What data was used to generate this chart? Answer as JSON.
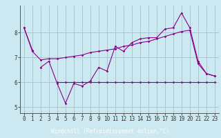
{
  "title": "",
  "xlabel": "Windchill (Refroidissement éolien,°C)",
  "bg_color": "#cce8f0",
  "line_color": "#880088",
  "grid_color": "#99ccbb",
  "xlabel_bg": "#660066",
  "xlabel_fg": "#ffffff",
  "x_values": [
    0,
    1,
    2,
    3,
    4,
    5,
    6,
    7,
    8,
    9,
    10,
    11,
    12,
    13,
    14,
    15,
    16,
    17,
    18,
    19,
    20,
    21,
    22,
    23
  ],
  "line1_x": [
    0,
    1
  ],
  "line1_y": [
    8.2,
    7.3
  ],
  "line2_x": [
    2,
    3,
    4,
    5,
    6,
    7,
    8,
    9,
    10,
    11,
    12,
    13,
    14,
    15,
    16,
    17,
    18,
    19,
    20,
    21,
    22,
    23
  ],
  "line2_y": [
    6.6,
    6.85,
    5.95,
    5.15,
    5.95,
    5.85,
    6.05,
    6.6,
    6.45,
    7.45,
    7.25,
    7.6,
    7.75,
    7.8,
    7.8,
    8.15,
    8.2,
    8.8,
    8.2,
    6.85,
    6.35,
    6.25
  ],
  "line3_x": [
    4,
    5,
    6,
    7,
    8,
    9,
    10,
    11,
    12,
    13,
    14,
    15,
    16,
    17,
    18,
    19,
    20,
    21,
    22,
    23
  ],
  "line3_y": [
    6.0,
    6.0,
    6.0,
    6.0,
    6.0,
    6.0,
    6.0,
    6.0,
    6.0,
    6.0,
    6.0,
    6.0,
    6.0,
    6.0,
    6.0,
    6.0,
    6.0,
    6.0,
    6.0,
    6.0
  ],
  "line4_x": [
    0,
    1,
    2,
    3,
    4,
    5,
    6,
    7,
    8,
    9,
    10,
    11,
    12,
    13,
    14,
    15,
    16,
    17,
    18,
    19,
    20,
    21,
    22,
    23
  ],
  "line4_y": [
    8.2,
    7.25,
    6.9,
    6.95,
    6.95,
    7.0,
    7.05,
    7.1,
    7.2,
    7.25,
    7.3,
    7.35,
    7.45,
    7.5,
    7.6,
    7.65,
    7.75,
    7.85,
    7.95,
    8.05,
    8.1,
    6.75,
    6.35,
    6.25
  ],
  "ylim": [
    4.75,
    9.1
  ],
  "yticks": [
    5,
    6,
    7,
    8
  ],
  "xticks": [
    0,
    1,
    2,
    3,
    4,
    5,
    6,
    7,
    8,
    9,
    10,
    11,
    12,
    13,
    14,
    15,
    16,
    17,
    18,
    19,
    20,
    21,
    22,
    23
  ],
  "tick_fontsize": 5.5,
  "xlabel_fontsize": 5.5
}
